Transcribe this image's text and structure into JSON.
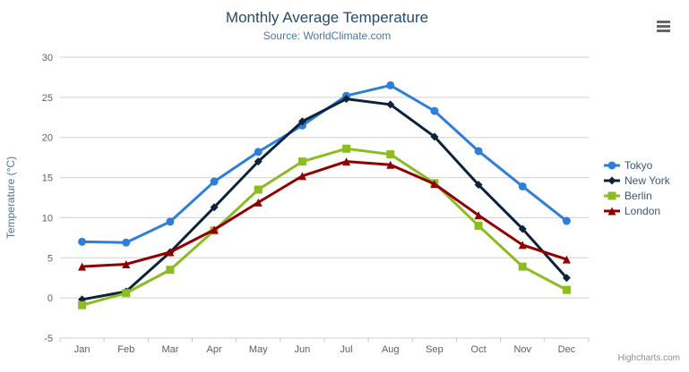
{
  "chart": {
    "title": "Monthly Average Temperature",
    "subtitle": "Source: WorldClimate.com",
    "credit": "Highcharts.com",
    "menu_icon": "hamburger-menu-icon",
    "colors": {
      "title": "#274b6d",
      "subtitle": "#4d759e",
      "axis_title": "#4d759e",
      "tick_label": "#606060",
      "grid_line": "#d0d0d0",
      "axis_line": "#c0d0e0",
      "legend_text": "#3e576f",
      "credit_text": "#909090"
    }
  },
  "chart_data": {
    "type": "line",
    "title": "Monthly Average Temperature",
    "subtitle": "Source: WorldClimate.com",
    "xlabel": "",
    "ylabel": "Temperature (°C)",
    "ylim": [
      -5,
      30
    ],
    "y_tick_interval": 5,
    "grid": "horizontal",
    "legend_position": "right",
    "categories": [
      "Jan",
      "Feb",
      "Mar",
      "Apr",
      "May",
      "Jun",
      "Jul",
      "Aug",
      "Sep",
      "Oct",
      "Nov",
      "Dec"
    ],
    "series": [
      {
        "name": "Tokyo",
        "color": "#2f7ed8",
        "marker": "circle",
        "values": [
          7.0,
          6.9,
          9.5,
          14.5,
          18.2,
          21.5,
          25.2,
          26.5,
          23.3,
          18.3,
          13.9,
          9.6
        ]
      },
      {
        "name": "New York",
        "color": "#0d233a",
        "marker": "diamond",
        "values": [
          -0.2,
          0.8,
          5.7,
          11.3,
          17.0,
          22.0,
          24.8,
          24.1,
          20.1,
          14.1,
          8.6,
          2.5
        ]
      },
      {
        "name": "Berlin",
        "color": "#8bbc21",
        "marker": "square",
        "values": [
          -0.9,
          0.6,
          3.5,
          8.4,
          13.5,
          17.0,
          18.6,
          17.9,
          14.3,
          9.0,
          3.9,
          1.0
        ]
      },
      {
        "name": "London",
        "color": "#910000",
        "marker": "triangle",
        "values": [
          3.9,
          4.2,
          5.7,
          8.5,
          11.9,
          15.2,
          17.0,
          16.6,
          14.2,
          10.3,
          6.6,
          4.8
        ]
      }
    ]
  }
}
